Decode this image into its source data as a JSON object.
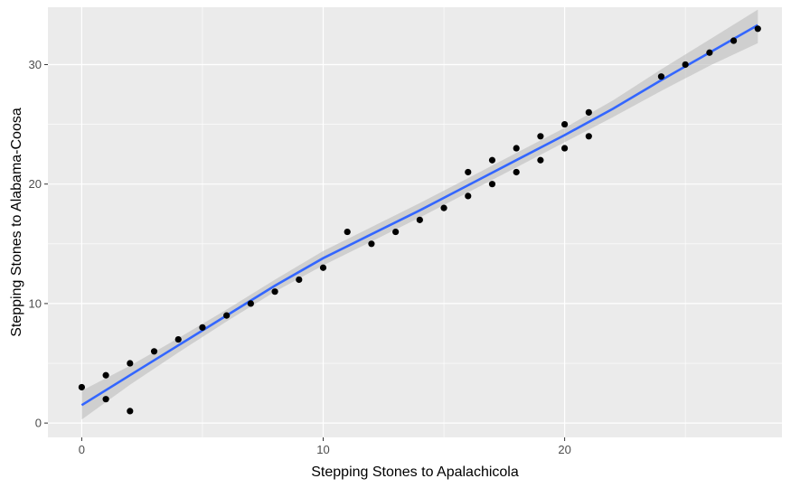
{
  "chart_data": {
    "type": "scatter",
    "xlabel": "Stepping Stones to Apalachicola",
    "ylabel": "Stepping Stones to Alabama-Coosa",
    "xlim": [
      -1.4,
      29.0
    ],
    "ylim": [
      -1.2,
      34.8
    ],
    "x_ticks": [
      0,
      10,
      20
    ],
    "y_ticks": [
      0,
      10,
      20,
      30
    ],
    "x_tick_labels": [
      "0",
      "10",
      "20"
    ],
    "y_tick_labels": [
      "0",
      "10",
      "20",
      "30"
    ],
    "grid": true,
    "colors": {
      "panel": "#ebebeb",
      "grid": "#ffffff",
      "points": "#000000",
      "smooth_line": "#3366ff",
      "confidence_band": "#bdbdbd"
    },
    "points": [
      {
        "x": 0,
        "y": 3
      },
      {
        "x": 1,
        "y": 4
      },
      {
        "x": 1,
        "y": 2
      },
      {
        "x": 2,
        "y": 5
      },
      {
        "x": 2,
        "y": 1
      },
      {
        "x": 3,
        "y": 6
      },
      {
        "x": 4,
        "y": 7
      },
      {
        "x": 5,
        "y": 8
      },
      {
        "x": 6,
        "y": 9
      },
      {
        "x": 7,
        "y": 10
      },
      {
        "x": 8,
        "y": 11
      },
      {
        "x": 9,
        "y": 12
      },
      {
        "x": 10,
        "y": 13
      },
      {
        "x": 11,
        "y": 16
      },
      {
        "x": 12,
        "y": 15
      },
      {
        "x": 13,
        "y": 16
      },
      {
        "x": 14,
        "y": 17
      },
      {
        "x": 15,
        "y": 18
      },
      {
        "x": 16,
        "y": 21
      },
      {
        "x": 16,
        "y": 19
      },
      {
        "x": 17,
        "y": 22
      },
      {
        "x": 17,
        "y": 20
      },
      {
        "x": 18,
        "y": 23
      },
      {
        "x": 18,
        "y": 21
      },
      {
        "x": 19,
        "y": 24
      },
      {
        "x": 19,
        "y": 22
      },
      {
        "x": 20,
        "y": 25
      },
      {
        "x": 20,
        "y": 23
      },
      {
        "x": 21,
        "y": 26
      },
      {
        "x": 21,
        "y": 24
      },
      {
        "x": 24,
        "y": 29
      },
      {
        "x": 25,
        "y": 30
      },
      {
        "x": 26,
        "y": 31
      },
      {
        "x": 27,
        "y": 32
      },
      {
        "x": 28,
        "y": 33
      }
    ],
    "smooth": {
      "x": [
        0,
        2,
        4,
        6,
        8,
        10,
        12,
        14,
        16,
        18,
        20,
        22,
        24,
        26,
        28
      ],
      "y": [
        1.5,
        4.0,
        6.5,
        9.0,
        11.5,
        13.8,
        15.8,
        17.8,
        19.9,
        22.0,
        24.1,
        26.3,
        28.7,
        31.0,
        33.3
      ],
      "lower": [
        0.3,
        3.2,
        5.9,
        8.5,
        11.0,
        13.2,
        15.2,
        17.2,
        19.3,
        21.4,
        23.5,
        25.6,
        27.8,
        29.9,
        31.8
      ],
      "upper": [
        2.7,
        4.8,
        7.1,
        9.5,
        12.0,
        14.4,
        16.4,
        18.4,
        20.5,
        22.6,
        24.7,
        27.0,
        29.6,
        32.1,
        34.6
      ]
    }
  }
}
